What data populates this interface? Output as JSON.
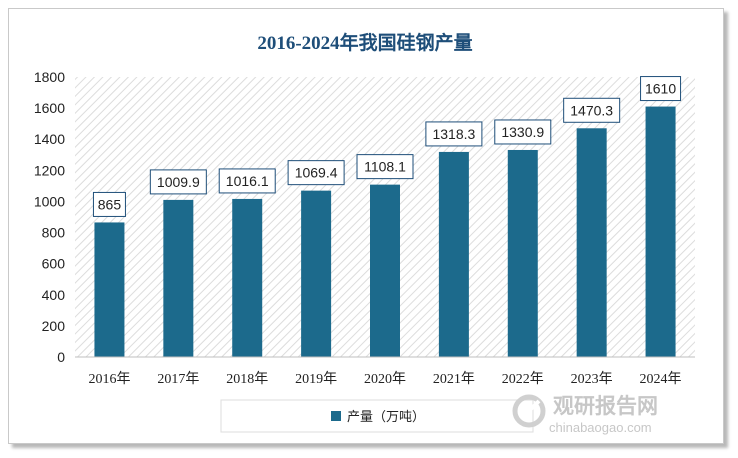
{
  "chart_data": {
    "type": "bar",
    "title": "2016-2024年我国硅钢产量",
    "categories": [
      "2016年",
      "2017年",
      "2018年",
      "2019年",
      "2020年",
      "2021年",
      "2022年",
      "2023年",
      "2024年"
    ],
    "series": [
      {
        "name": "产量（万吨）",
        "values": [
          865,
          1009.9,
          1016.1,
          1069.4,
          1108.1,
          1318.3,
          1330.9,
          1470.3,
          1610
        ]
      }
    ],
    "data_labels": [
      "865",
      "1009.9",
      "1016.1",
      "1069.4",
      "1108.1",
      "1318.3",
      "1330.9",
      "1470.3",
      "1610"
    ],
    "yticks": [
      "0",
      "200",
      "400",
      "600",
      "800",
      "1000",
      "1200",
      "1400",
      "1600",
      "1800"
    ],
    "ylim": [
      0,
      1800
    ],
    "xlabel": "",
    "ylabel": "",
    "legend_position": "bottom",
    "plot_background": "diagonal hatch",
    "colors": {
      "bar": "#1c6a8c",
      "title": "#1e4e79",
      "label_border": "#1e4e79"
    }
  },
  "watermark": {
    "cn": "观研报告网",
    "en": "chinabaogao.com"
  }
}
